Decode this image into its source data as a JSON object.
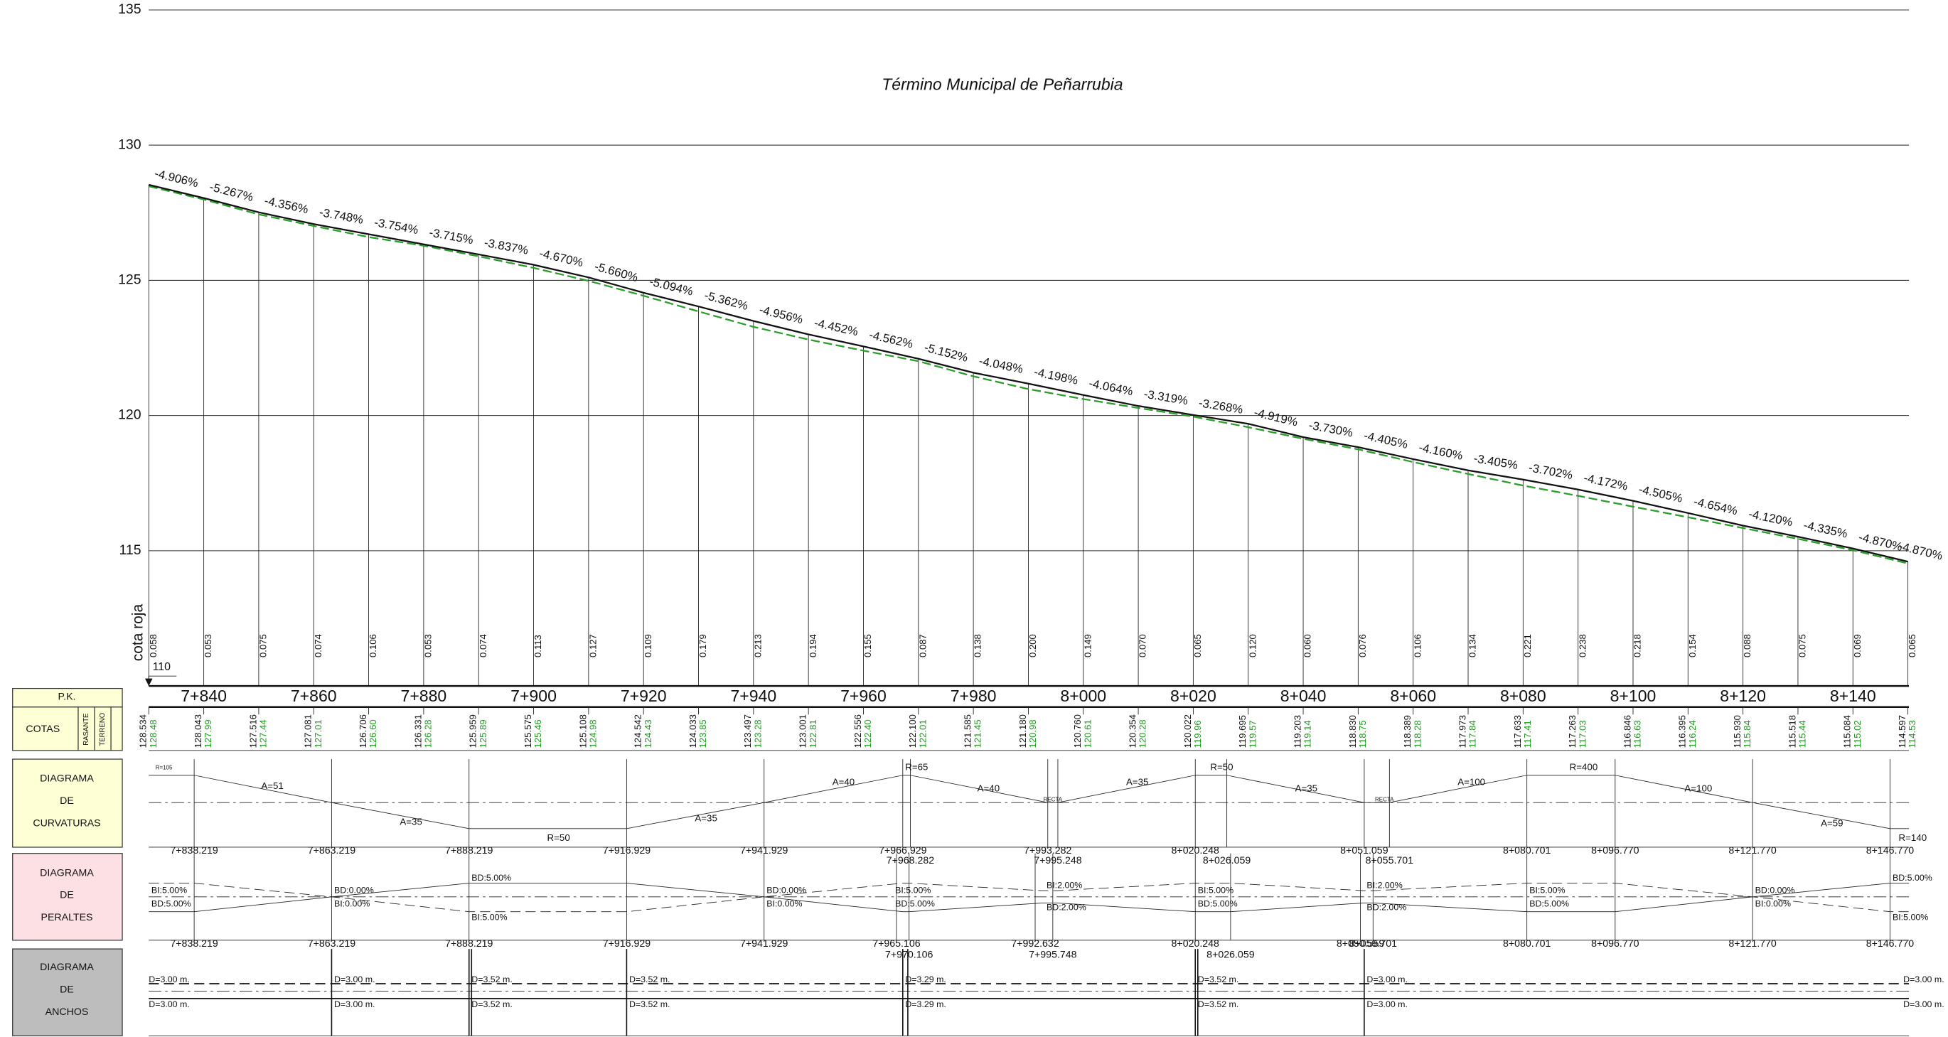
{
  "title": "Término Municipal de Peñarrubia",
  "axis": {
    "label": "cota roja",
    "ylim": [
      110,
      135
    ],
    "yticks": [
      115,
      120,
      125,
      130,
      135
    ],
    "datum": 110
  },
  "profile": {
    "stations": [
      "7+840",
      "7+860",
      "7+880",
      "7+900",
      "7+920",
      "7+940",
      "7+960",
      "7+980",
      "8+000",
      "8+020",
      "8+040",
      "8+060",
      "8+080",
      "8+100",
      "8+120",
      "8+140"
    ],
    "rasante": [
      "128.534",
      "128.043",
      "127.516",
      "127.081",
      "126.706",
      "126.331",
      "125.959",
      "125.575",
      "125.108",
      "124.542",
      "124.033",
      "123.497",
      "123.001",
      "122.556",
      "122.100",
      "121.585",
      "121.180",
      "120.760",
      "120.354",
      "120.022",
      "119.695",
      "119.203",
      "118.830",
      "118.389",
      "117.973",
      "117.633",
      "117.263",
      "116.846",
      "116.395",
      "115.930",
      "115.518",
      "115.084",
      "114.597"
    ],
    "terreno": [
      "128.48",
      "127.99",
      "127.44",
      "127.01",
      "126.60",
      "126.28",
      "125.89",
      "125.46",
      "124.98",
      "124.43",
      "123.85",
      "123.28",
      "122.81",
      "122.40",
      "122.01",
      "121.45",
      "120.98",
      "120.61",
      "120.28",
      "119.96",
      "119.57",
      "119.14",
      "118.75",
      "118.28",
      "117.84",
      "117.41",
      "117.03",
      "116.63",
      "116.24",
      "115.84",
      "115.44",
      "115.02",
      "114.53"
    ],
    "cota_roja": [
      "0.058",
      "0.053",
      "0.075",
      "0.074",
      "0.106",
      "0.053",
      "0.074",
      "0.113",
      "0.127",
      "0.109",
      "0.179",
      "0.213",
      "0.194",
      "0.155",
      "0.087",
      "0.138",
      "0.200",
      "0.149",
      "0.070",
      "0.065",
      "0.120",
      "0.060",
      "0.076",
      "0.106",
      "0.134",
      "0.221",
      "0.238",
      "0.218",
      "0.154",
      "0.088",
      "0.075",
      "0.069",
      "0.065"
    ],
    "grades": [
      "-4.906%",
      "-5.267%",
      "-4.356%",
      "-3.748%",
      "-3.754%",
      "-3.715%",
      "-3.837%",
      "-4.670%",
      "-5.660%",
      "-5.094%",
      "-5.362%",
      "-4.956%",
      "-4.452%",
      "-4.562%",
      "-5.152%",
      "-4.048%",
      "-4.198%",
      "-4.064%",
      "-3.319%",
      "-3.268%",
      "-4.919%",
      "-3.730%",
      "-4.405%",
      "-4.160%",
      "-3.405%",
      "-3.702%",
      "-4.172%",
      "-4.505%",
      "-4.654%",
      "-4.120%",
      "-4.335%",
      "-4.870%",
      "-4.870%"
    ]
  },
  "headers": {
    "pk": "P.K.",
    "cotas": "COTAS",
    "rasante": "RASANTE",
    "terreno": "TERRENO",
    "curvaturas": [
      "DIAGRAMA",
      "DE",
      "CURVATURAS"
    ],
    "peraltes": [
      "DIAGRAMA",
      "DE",
      "PERALTES"
    ],
    "anchos": [
      "DIAGRAMA",
      "DE",
      "ANCHOS"
    ]
  },
  "curvaturas": {
    "labels": [
      "R=105",
      "A=51",
      "A=35",
      "R=50",
      "A=35",
      "A=40",
      "R=65",
      "A=40",
      "RECTA",
      "A=35",
      "R=50",
      "A=35",
      "RECTA",
      "A=100",
      "R=400",
      "A=100",
      "A=59",
      "R=140"
    ],
    "stations": [
      "7+838.219",
      "7+863.219",
      "7+888.219",
      "7+916.929",
      "7+941.929",
      "7+966.929",
      "7+968.282",
      "7+993.282",
      "7+995.248",
      "8+020.248",
      "8+026.059",
      "8+051.059",
      "8+055.701",
      "8+080.701",
      "8+096.770",
      "8+121.770",
      "8+146.770"
    ]
  },
  "peraltes": {
    "labels": [
      "BI:5.00%",
      "BD:5.00%",
      "BD:0.00%",
      "BI:0.00%",
      "BD:5.00%",
      "BI:5.00%",
      "BD:0.00%",
      "BI:0.00%",
      "BI:5.00%",
      "BD:5.00%",
      "BI:2.00%",
      "BD:2.00%",
      "BI:5.00%",
      "BD:5.00%",
      "BI:2.00%",
      "BD:2.00%",
      "BI:5.00%",
      "BD:5.00%",
      "BD:0.00%",
      "BI:0.00%",
      "BD:5.00%",
      "BI:5.00%"
    ],
    "stations": [
      "7+838.219",
      "7+863.219",
      "7+888.219",
      "7+916.929",
      "7+941.929",
      "7+965.106",
      "7+970.106",
      "7+992.632",
      "7+995.748",
      "8+020.248",
      "8+026.059",
      "8+050.559",
      "8+059.701",
      "8+080.701",
      "8+096.770",
      "8+121.770",
      "8+146.770"
    ]
  },
  "anchos": {
    "labels": [
      "D=3.00 m.",
      "D=3.00 m.",
      "D=3.52 m.",
      "D=3.52 m.",
      "D=3.29 m.",
      "D=3.52 m.",
      "D=3.00 m.",
      "D=3.00 m.",
      "D=3.00 m.",
      "D=3.00 m.",
      "D=3.52 m.",
      "D=3.52 m.",
      "D=3.29 m.",
      "D=3.52 m.",
      "D=3.00 m.",
      "D=3.00 m."
    ]
  }
}
